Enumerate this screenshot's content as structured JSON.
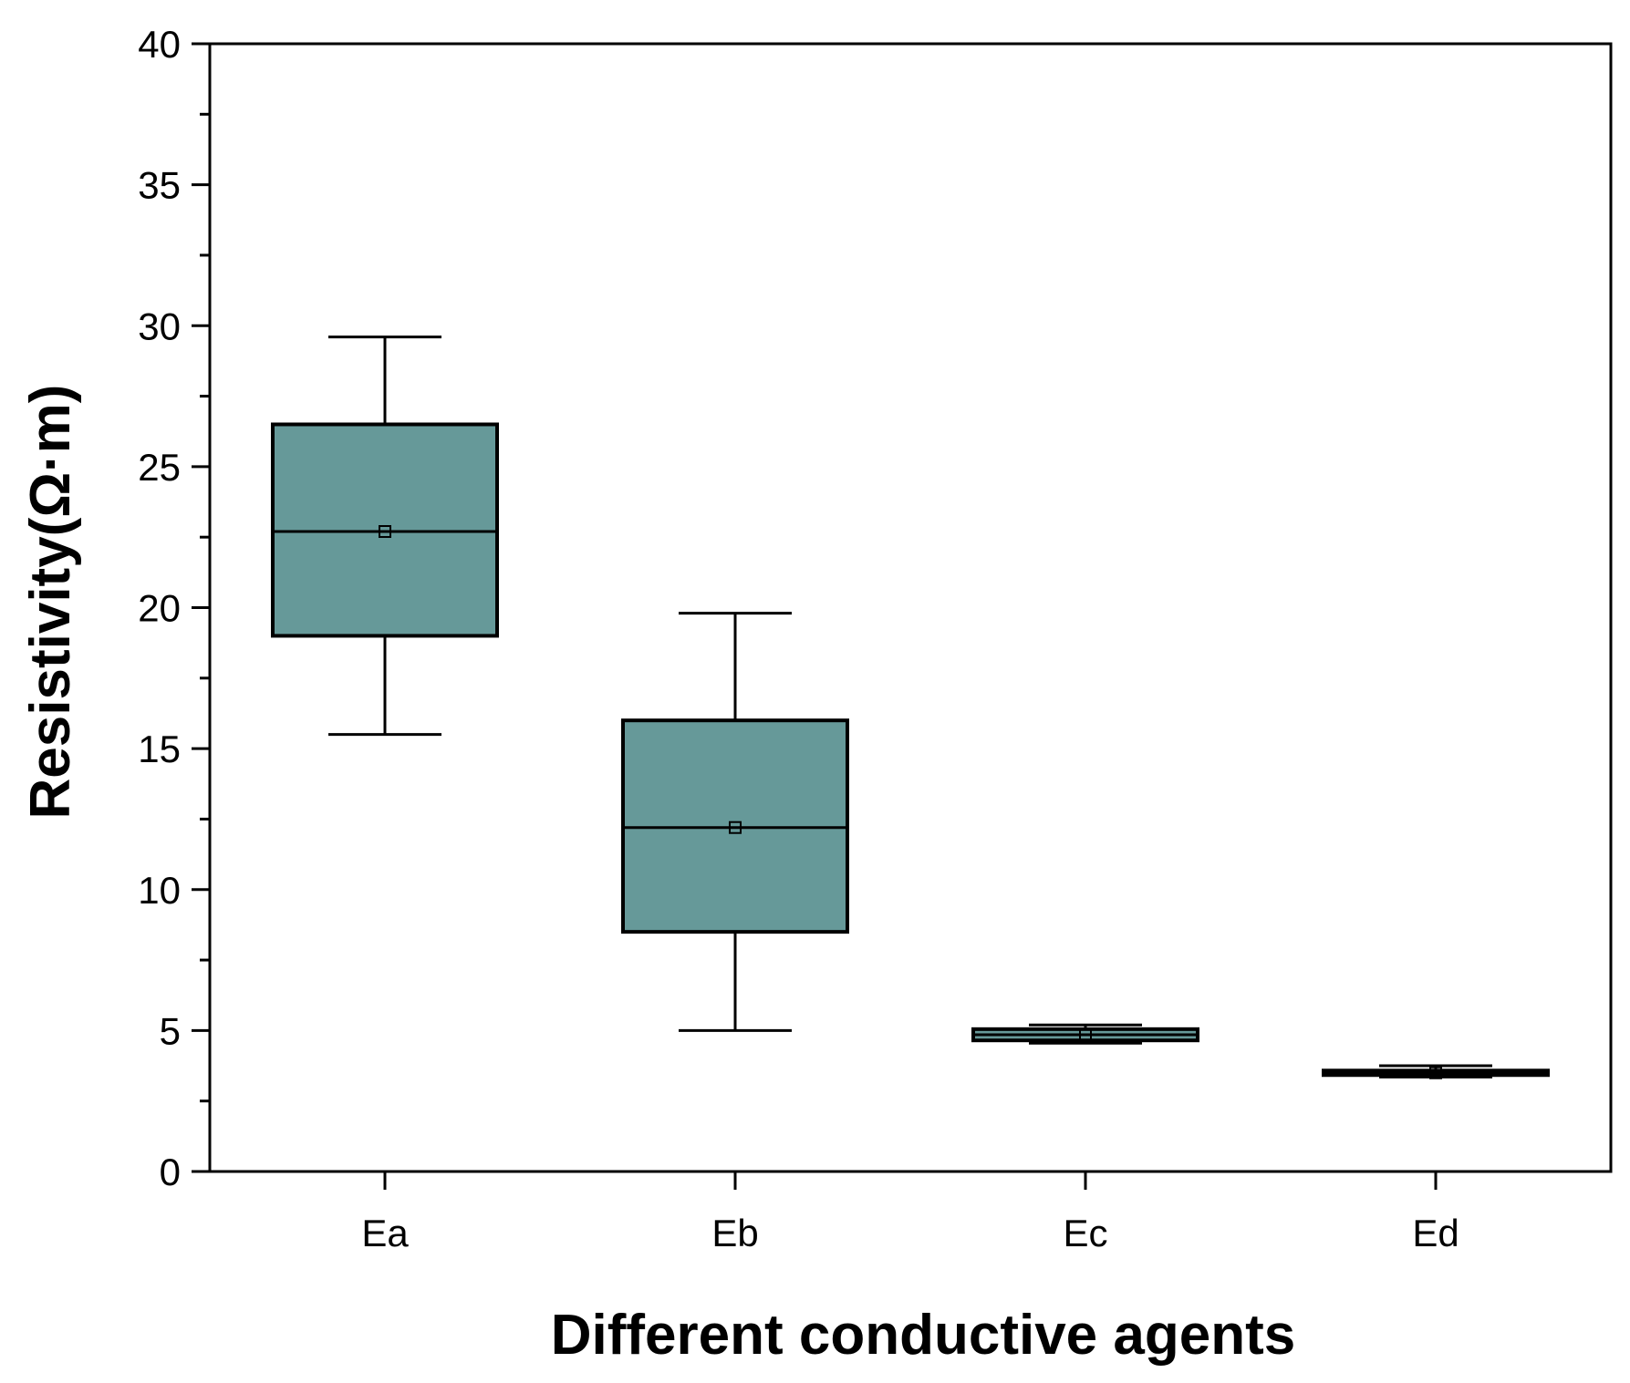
{
  "chart_data": {
    "type": "box",
    "title": "",
    "xlabel": "Different conductive agents",
    "ylabel": "Resistivity(Ω·m)",
    "ylim": [
      0,
      40
    ],
    "yticks": [
      0,
      5,
      10,
      15,
      20,
      25,
      30,
      35,
      40
    ],
    "ytick_labels": [
      "0",
      "5",
      "10",
      "15",
      "20",
      "25",
      "30",
      "35",
      "40"
    ],
    "minor_ticks": true,
    "grid": false,
    "box_color": "#669999",
    "edge_color": "#000000",
    "categories": [
      "Ea",
      "Eb",
      "Ec",
      "Ed"
    ],
    "boxes": [
      {
        "name": "Ea",
        "whisker_low": 15.5,
        "q1": 19.0,
        "median": 22.7,
        "q3": 26.5,
        "whisker_high": 29.6,
        "mean": 22.7
      },
      {
        "name": "Eb",
        "whisker_low": 5.0,
        "q1": 8.5,
        "median": 12.2,
        "q3": 16.0,
        "whisker_high": 19.8,
        "mean": 12.2
      },
      {
        "name": "Ec",
        "whisker_low": 4.55,
        "q1": 4.65,
        "median": 4.85,
        "q3": 5.05,
        "whisker_high": 5.2,
        "mean": 4.85
      },
      {
        "name": "Ed",
        "whisker_low": 3.35,
        "q1": 3.42,
        "median": 3.5,
        "q3": 3.58,
        "whisker_high": 3.75,
        "mean": 3.5
      }
    ]
  }
}
